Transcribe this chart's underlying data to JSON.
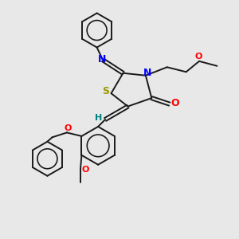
{
  "bg_color": "#e8e8e8",
  "bond_color": "#1a1a1a",
  "S_color": "#999900",
  "N_color": "#0000ff",
  "O_color": "#ff0000",
  "H_color": "#008080",
  "bond_width": 1.4,
  "fig_size": [
    3.0,
    3.0
  ],
  "dpi": 100,
  "xlim": [
    0,
    10
  ],
  "ylim": [
    0,
    10
  ]
}
